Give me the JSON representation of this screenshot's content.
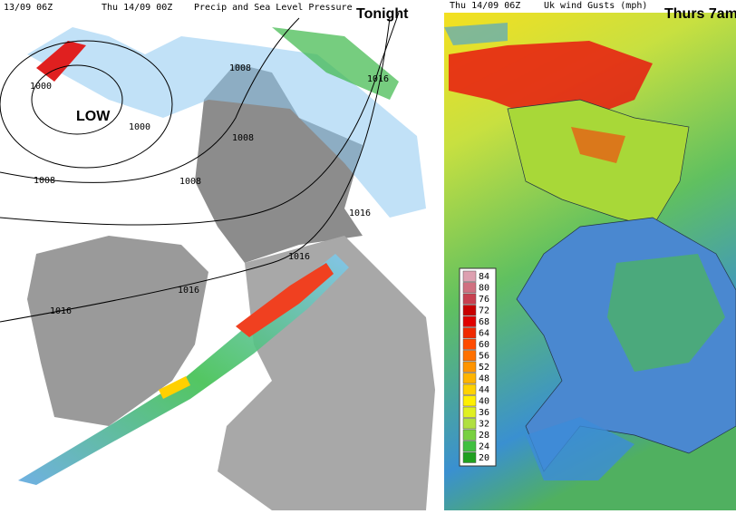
{
  "left_panel": {
    "header": {
      "left": "13/09 06Z",
      "center": "Thu 14/09 00Z",
      "right": "Precip and Sea Level Pressure"
    },
    "caption": "Tonight",
    "low_label": "LOW",
    "isobar_labels": [
      1008,
      1016,
      1000,
      1000,
      1008,
      1008,
      1008,
      1016,
      1016,
      1016,
      1016
    ]
  },
  "right_panel": {
    "header": {
      "left": "Thu 14/09 06Z",
      "right": "Uk wind Gusts (mph)"
    },
    "caption": "Thurs 7am",
    "legend": [
      {
        "value": 84,
        "color": "#dda0b0"
      },
      {
        "value": 80,
        "color": "#d07080"
      },
      {
        "value": 76,
        "color": "#c84050"
      },
      {
        "value": 72,
        "color": "#c80000"
      },
      {
        "value": 68,
        "color": "#e00000"
      },
      {
        "value": 64,
        "color": "#f02800"
      },
      {
        "value": 60,
        "color": "#ff4a00"
      },
      {
        "value": 56,
        "color": "#ff7000"
      },
      {
        "value": 52,
        "color": "#ff9400"
      },
      {
        "value": 48,
        "color": "#ffb400"
      },
      {
        "value": 44,
        "color": "#ffd200"
      },
      {
        "value": 40,
        "color": "#fff000"
      },
      {
        "value": 36,
        "color": "#e0f020"
      },
      {
        "value": 32,
        "color": "#b0e040"
      },
      {
        "value": 28,
        "color": "#78d040"
      },
      {
        "value": 24,
        "color": "#40c040"
      },
      {
        "value": 20,
        "color": "#20a020"
      }
    ]
  }
}
